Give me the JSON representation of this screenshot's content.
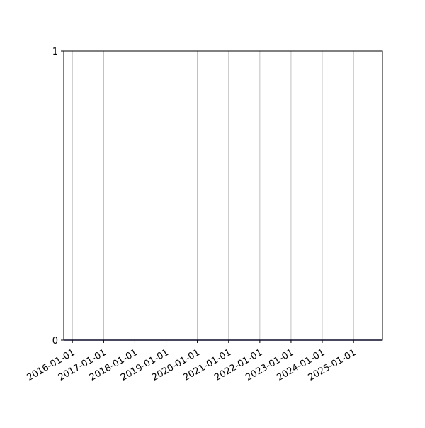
{
  "chart_data": {
    "type": "line",
    "title": "",
    "xlabel": "",
    "ylabel": "",
    "x_axis_type": "date",
    "xlim": [
      "2015-09-22",
      "2025-12-05"
    ],
    "ylim": [
      0,
      1
    ],
    "x_ticks": [
      "2016-01-01",
      "2017-01-01",
      "2018-01-01",
      "2019-01-01",
      "2020-01-01",
      "2021-01-01",
      "2022-01-01",
      "2023-01-01",
      "2024-01-01",
      "2025-01-01"
    ],
    "y_ticks": [
      "0",
      "1"
    ],
    "grid": {
      "x": true,
      "y": false
    },
    "series": [
      {
        "color": "#1f1f7a",
        "x": [
          "2015-09-22",
          "2025-12-05"
        ],
        "y": [
          0,
          0
        ]
      }
    ]
  }
}
